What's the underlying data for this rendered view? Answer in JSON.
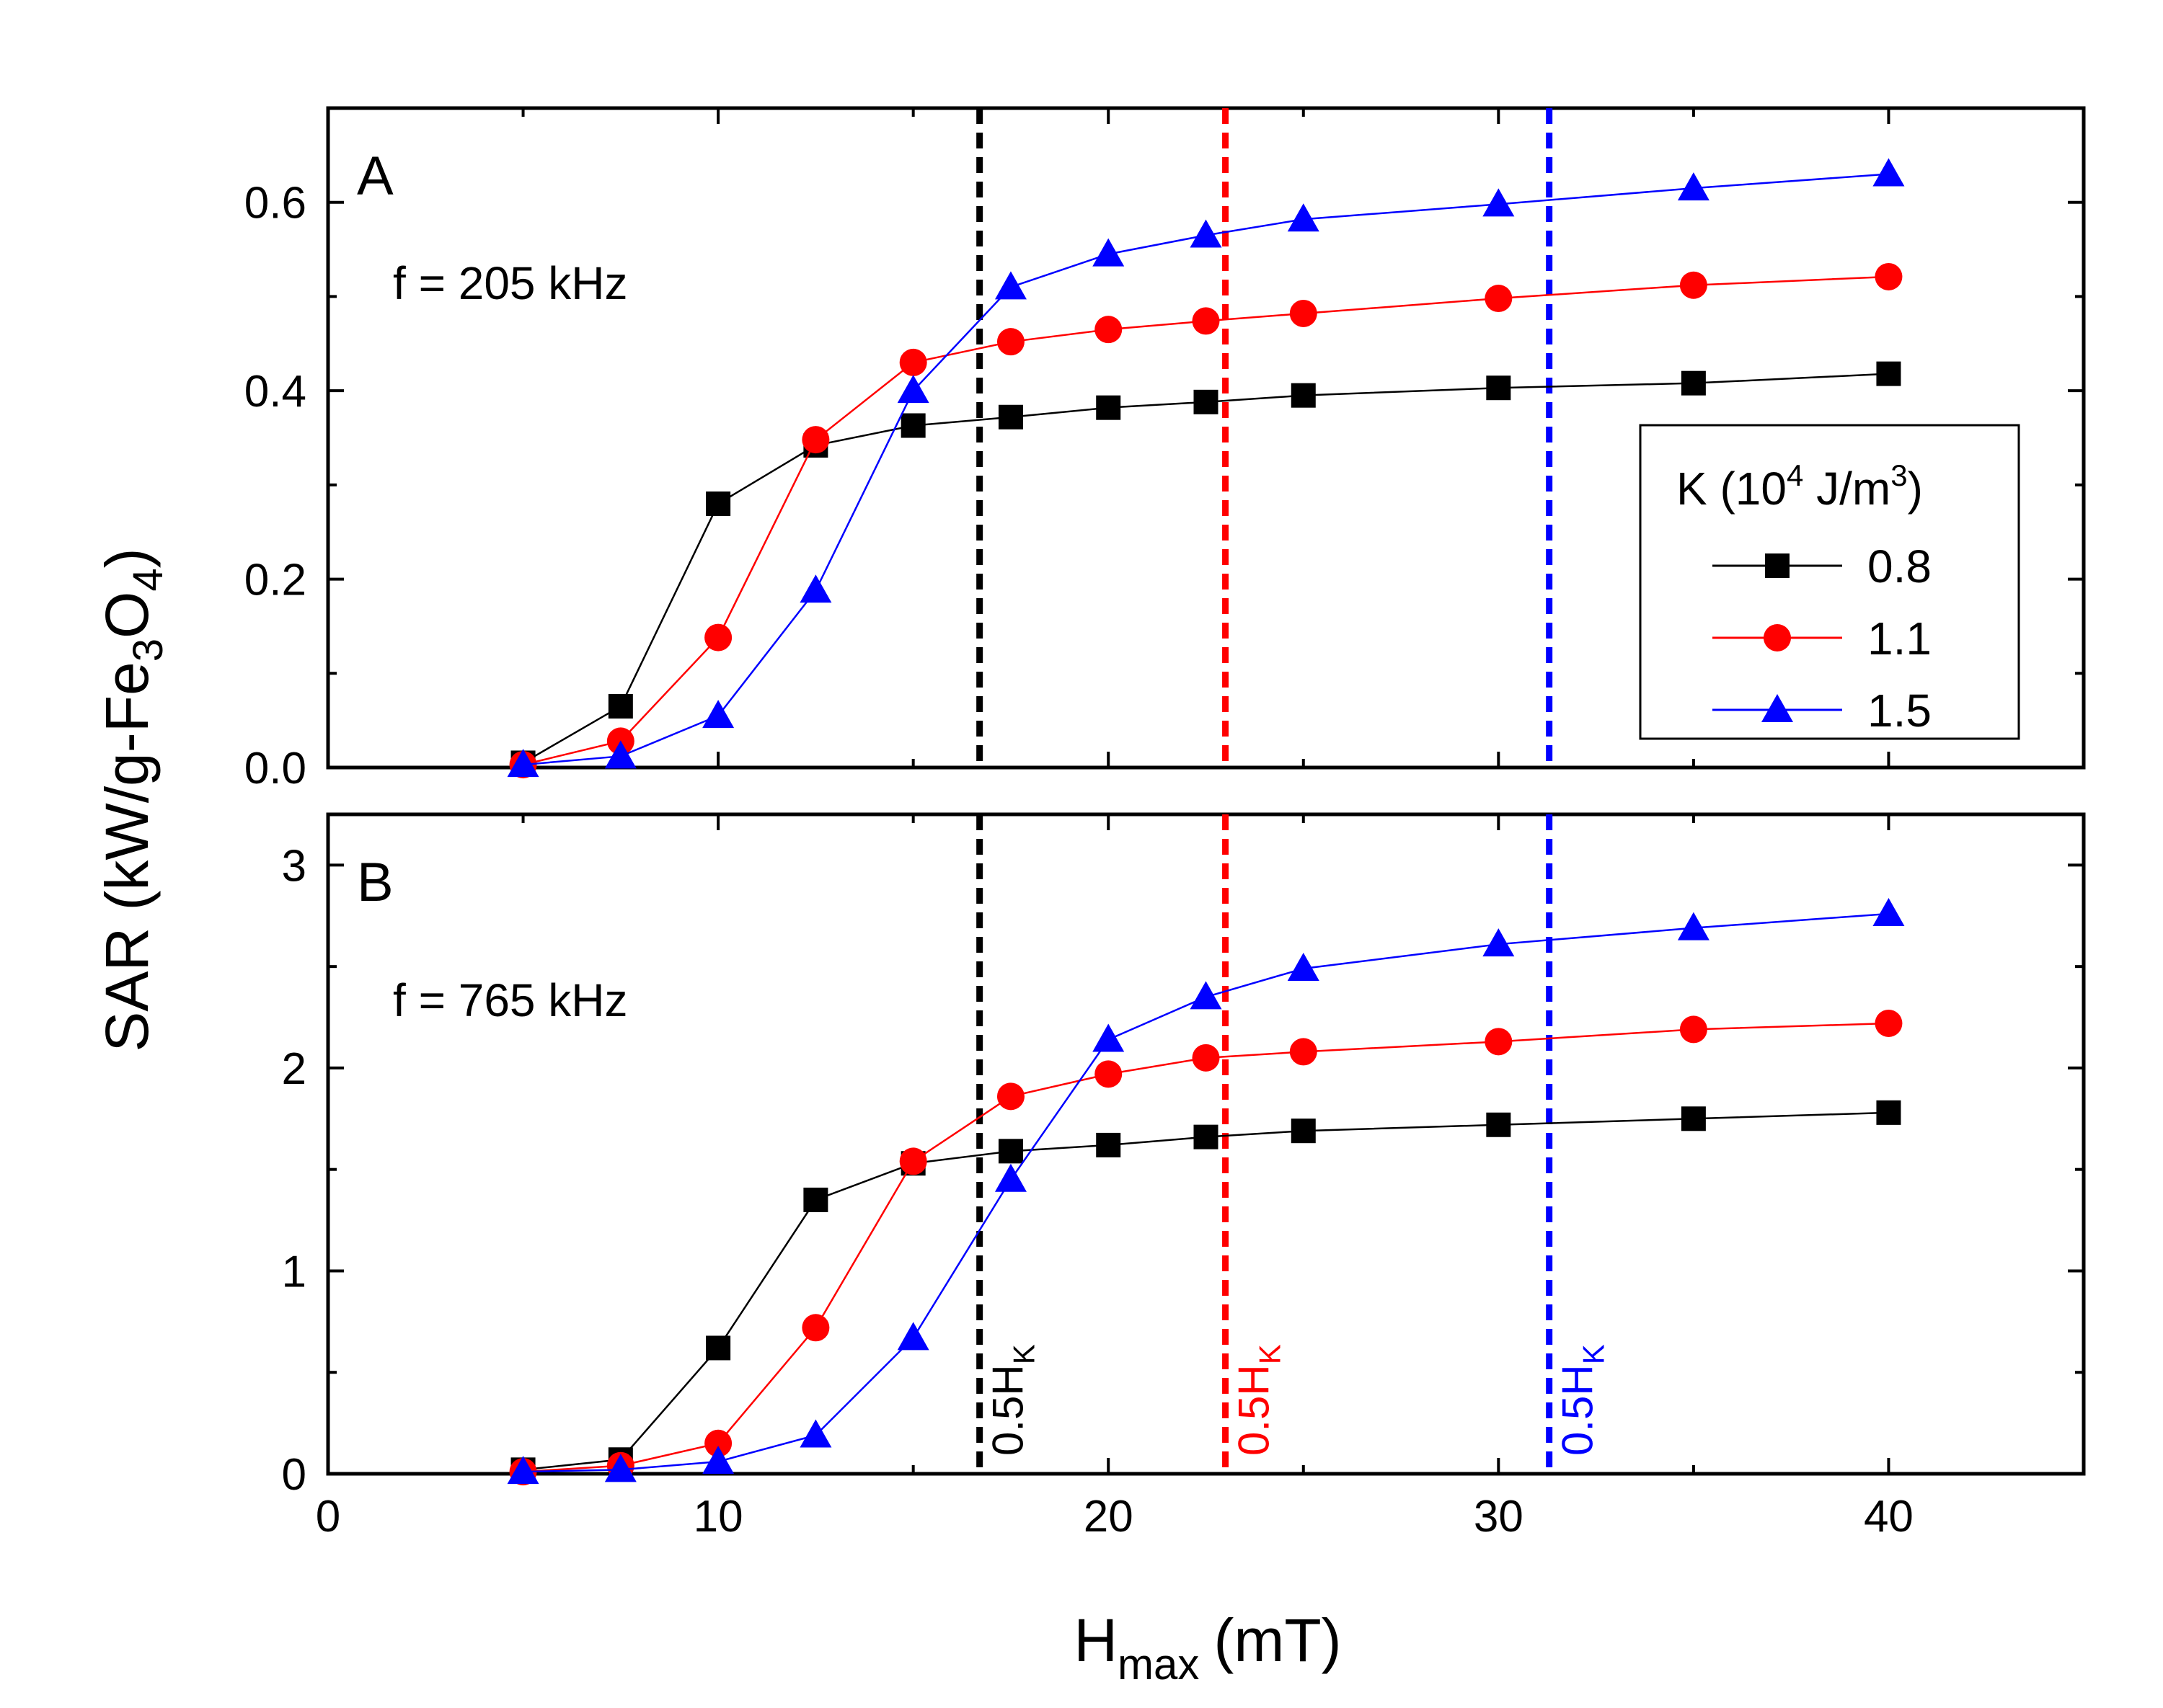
{
  "chart_data": {
    "type": "line",
    "xlabel": "H",
    "xlabel_sub": "max",
    "xlabel_unit": "(mT)",
    "ylabel_parts": [
      "SAR (kW/g-Fe",
      "3",
      "O",
      "4",
      ")"
    ],
    "xlim": [
      0,
      45
    ],
    "xticks": [
      0,
      10,
      20,
      30,
      40
    ],
    "x": [
      5,
      7.5,
      10,
      12.5,
      15,
      17.5,
      20,
      22.5,
      25,
      30,
      35,
      40
    ],
    "legend": {
      "title_parts": [
        "K (10",
        "4",
        " J/m",
        "3",
        ")"
      ],
      "entries": [
        "0.8",
        "1.1",
        "1.5"
      ]
    },
    "colors": {
      "black": "#000000",
      "red": "#ff0000",
      "blue": "#0000ff"
    },
    "markers": [
      "square",
      "circle",
      "triangle"
    ],
    "hk_lines": [
      {
        "x": 16.7,
        "color": "#000000",
        "label": "0.5H",
        "sub": "K"
      },
      {
        "x": 23.0,
        "color": "#ff0000",
        "label": "0.5H",
        "sub": "K"
      },
      {
        "x": 31.3,
        "color": "#0000ff",
        "label": "0.5H",
        "sub": "K"
      }
    ],
    "panels": [
      {
        "label": "A",
        "freq": "f = 205 kHz",
        "ylim": [
          0,
          0.7
        ],
        "yticks": [
          0.0,
          0.2,
          0.4,
          0.6
        ],
        "ytick_labels": [
          "0.0",
          "0.2",
          "0.4",
          "0.6"
        ],
        "series": [
          {
            "name": "0.8",
            "values": [
              0.005,
              0.065,
              0.28,
              0.342,
              0.363,
              0.372,
              0.382,
              0.388,
              0.395,
              0.403,
              0.408,
              0.418
            ]
          },
          {
            "name": "1.1",
            "values": [
              0.003,
              0.028,
              0.138,
              0.348,
              0.43,
              0.452,
              0.465,
              0.474,
              0.482,
              0.498,
              0.512,
              0.521
            ]
          },
          {
            "name": "1.5",
            "values": [
              0.003,
              0.012,
              0.055,
              0.188,
              0.4,
              0.51,
              0.545,
              0.565,
              0.582,
              0.598,
              0.615,
              0.63
            ]
          }
        ]
      },
      {
        "label": "B",
        "freq": "f = 765 kHz",
        "ylim": [
          0,
          3.25
        ],
        "yticks": [
          0,
          1,
          2,
          3
        ],
        "ytick_labels": [
          "0",
          "1",
          "2",
          "3"
        ],
        "series": [
          {
            "name": "0.8",
            "values": [
              0.02,
              0.07,
              0.62,
              1.35,
              1.53,
              1.59,
              1.62,
              1.66,
              1.69,
              1.72,
              1.75,
              1.78
            ]
          },
          {
            "name": "1.1",
            "values": [
              0.01,
              0.04,
              0.15,
              0.72,
              1.54,
              1.86,
              1.97,
              2.05,
              2.08,
              2.13,
              2.19,
              2.22
            ]
          },
          {
            "name": "1.5",
            "values": [
              0.01,
              0.02,
              0.06,
              0.19,
              0.67,
              1.45,
              2.14,
              2.35,
              2.49,
              2.61,
              2.69,
              2.76
            ]
          }
        ]
      }
    ]
  }
}
